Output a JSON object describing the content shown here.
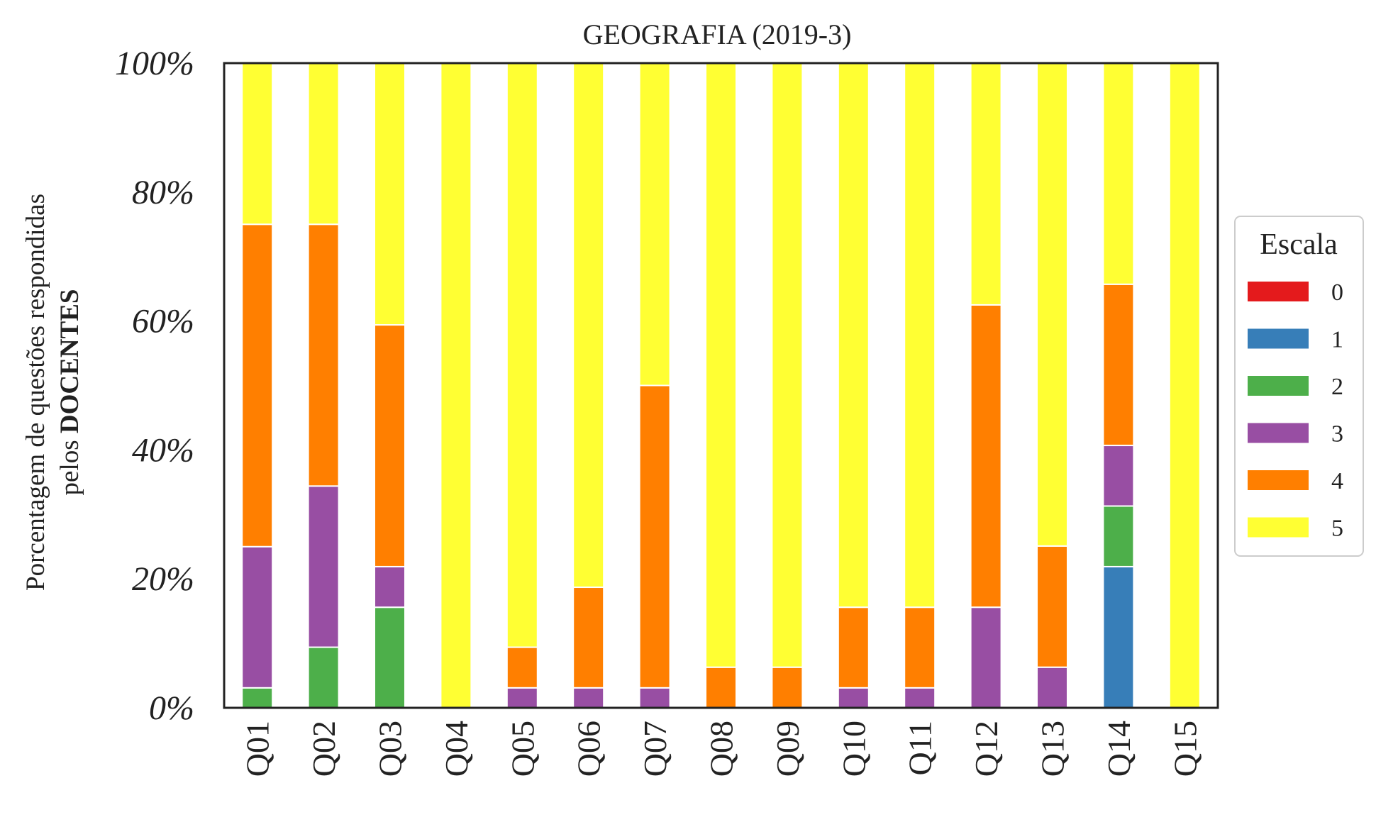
{
  "chart_data": {
    "type": "bar",
    "stacked": true,
    "normalized": true,
    "title": "GEOGRAFIA (2019-3)",
    "ylabel_line1": "Porcentagem de questões respondidas",
    "ylabel_line2_prefix": "pelos ",
    "ylabel_line2_bold": "DOCENTES",
    "ylim": [
      0,
      100
    ],
    "yticks": [
      {
        "value": 0,
        "label": "0%"
      },
      {
        "value": 20,
        "label": "20%"
      },
      {
        "value": 40,
        "label": "40%"
      },
      {
        "value": 60,
        "label": "60%"
      },
      {
        "value": 80,
        "label": "80%"
      },
      {
        "value": 100,
        "label": "100%"
      }
    ],
    "categories": [
      "Q01",
      "Q02",
      "Q03",
      "Q04",
      "Q05",
      "Q06",
      "Q07",
      "Q08",
      "Q09",
      "Q10",
      "Q11",
      "Q12",
      "Q13",
      "Q14",
      "Q15"
    ],
    "legend": {
      "title": "Escala",
      "position": "center-right"
    },
    "grid": false,
    "series": [
      {
        "name": "0",
        "color": "#e41a1c",
        "values": [
          0,
          0,
          0,
          0,
          0,
          0,
          0,
          0,
          0,
          0,
          0,
          0,
          0,
          0,
          0
        ]
      },
      {
        "name": "1",
        "color": "#377eb8",
        "values": [
          0,
          0,
          0,
          0,
          0,
          0,
          0,
          0,
          0,
          0,
          0,
          0,
          0,
          21.9,
          0
        ]
      },
      {
        "name": "2",
        "color": "#4daf4a",
        "values": [
          3.1,
          9.4,
          15.6,
          0,
          0,
          0,
          0,
          0,
          0,
          0,
          0,
          0,
          0,
          9.4,
          0
        ]
      },
      {
        "name": "3",
        "color": "#984ea3",
        "values": [
          21.9,
          25.0,
          6.3,
          0,
          3.1,
          3.1,
          3.1,
          0,
          0,
          3.1,
          3.1,
          15.6,
          6.3,
          9.4,
          0
        ]
      },
      {
        "name": "4",
        "color": "#ff7f00",
        "values": [
          50.0,
          40.6,
          37.5,
          0,
          6.3,
          15.6,
          46.9,
          6.3,
          6.3,
          12.5,
          12.5,
          46.9,
          18.8,
          25.0,
          0
        ]
      },
      {
        "name": "5",
        "color": "#ffff33",
        "values": [
          25.0,
          25.0,
          40.6,
          100,
          90.6,
          81.3,
          50.0,
          93.7,
          93.7,
          84.4,
          84.4,
          37.5,
          74.9,
          34.3,
          100
        ]
      }
    ]
  }
}
